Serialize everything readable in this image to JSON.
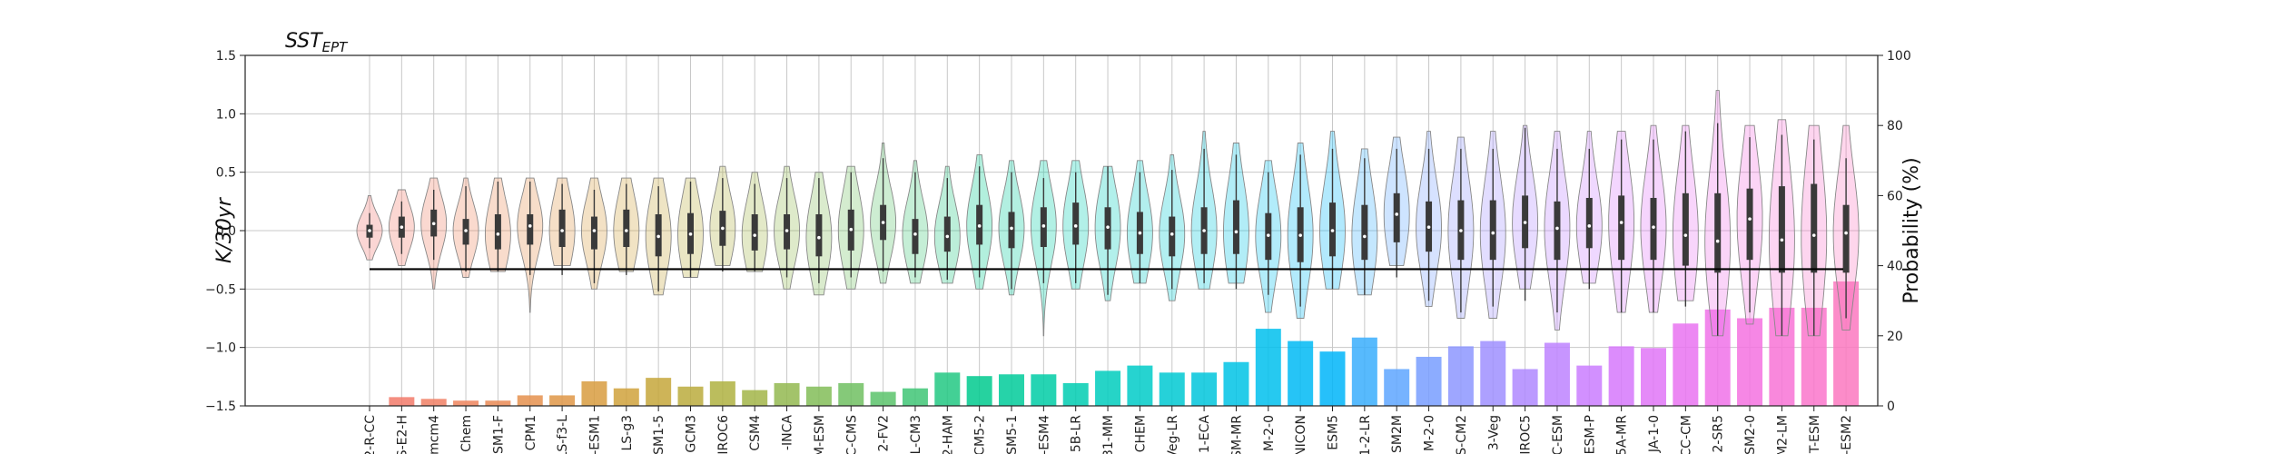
{
  "chart_data": {
    "type": "violin+bar",
    "title": "SST",
    "title_subscript": "EPT",
    "ylabel_left": "K/30yr",
    "ylabel_right": "Probability (%)",
    "ylim_left": [
      -1.5,
      1.5
    ],
    "yticks_left": [
      -1.5,
      -1.0,
      -0.5,
      0.0,
      0.5,
      1.0,
      1.5
    ],
    "ytick_labels_left": [
      "−1.5",
      "−1.0",
      "−0.5",
      "0.0",
      "0.5",
      "1.0",
      "1.5"
    ],
    "ylim_right": [
      0,
      100
    ],
    "yticks_right": [
      0,
      20,
      40,
      60,
      80,
      100
    ],
    "ytick_labels_right": [
      "0",
      "20",
      "40",
      "60",
      "80",
      "100"
    ],
    "reference_line_value": -0.33,
    "grid": true,
    "categories": [
      "2-R-CC",
      "S-E2-H",
      "mcm4",
      "Chem",
      "SM1-F",
      "CPM1",
      "LS-f3-L",
      "-ESM1",
      "LS-g3",
      "SM1-5",
      "GCM3",
      "IROC6",
      "CSM4",
      "-INCA",
      "M-ESM",
      "C-CMS",
      "2-FV2",
      "L-CM3",
      "2-HAM",
      "CM5-2",
      "ESM5-1",
      "-ESM4",
      "5B-LR",
      "31-MM",
      "CHEM",
      "Veg-LR",
      "1-ECA",
      "SM-MR",
      "M-2-0",
      "NICON",
      "ESM5",
      "1-2-LR",
      "SM2M",
      "M-2-0",
      "S-CM2",
      "3-Veg",
      "IROC5",
      "C-ESM",
      "ESM-P",
      "5A-MR",
      "JA-1-0",
      "CC-CM",
      "2-SR5",
      "SM2-0",
      "M2-LM",
      "T-ESM",
      "-ESM2"
    ],
    "probability_values": [
      0,
      2.5,
      2,
      1.5,
      1.5,
      3,
      3,
      7,
      5,
      8,
      5.5,
      7,
      4.5,
      6.5,
      5.5,
      6.5,
      4,
      5,
      9.5,
      8.5,
      9,
      9,
      6.5,
      10,
      11.5,
      9.5,
      9.5,
      12.5,
      22,
      18.5,
      15.5,
      19.5,
      10.5,
      14,
      17,
      18.5,
      10.5,
      18,
      11.5,
      17,
      16.5,
      23.5,
      27.5,
      25,
      28,
      28,
      35.5
    ],
    "violin_medians": [
      0.0,
      0.03,
      0.06,
      0.0,
      -0.03,
      0.04,
      0.0,
      0.0,
      0.0,
      -0.05,
      -0.03,
      0.02,
      -0.04,
      0.0,
      -0.06,
      0.01,
      0.07,
      -0.03,
      -0.05,
      0.04,
      0.02,
      0.04,
      0.04,
      0.03,
      -0.02,
      -0.03,
      0.0,
      -0.01,
      -0.04,
      -0.04,
      0.0,
      -0.05,
      0.14,
      0.03,
      0.0,
      -0.02,
      0.07,
      0.02,
      0.04,
      0.07,
      0.03,
      -0.04,
      -0.09,
      0.1,
      -0.08,
      -0.04,
      -0.02
    ],
    "violin_q1": [
      -0.06,
      -0.06,
      -0.05,
      -0.12,
      -0.16,
      -0.12,
      -0.14,
      -0.16,
      -0.14,
      -0.22,
      -0.2,
      -0.13,
      -0.17,
      -0.16,
      -0.22,
      -0.17,
      -0.08,
      -0.2,
      -0.18,
      -0.12,
      -0.15,
      -0.14,
      -0.12,
      -0.16,
      -0.2,
      -0.22,
      -0.2,
      -0.2,
      -0.25,
      -0.27,
      -0.22,
      -0.25,
      -0.1,
      -0.18,
      -0.25,
      -0.25,
      -0.15,
      -0.25,
      -0.15,
      -0.25,
      -0.25,
      -0.3,
      -0.36,
      -0.25,
      -0.36,
      -0.36,
      -0.36
    ],
    "violin_q3": [
      0.05,
      0.12,
      0.18,
      0.1,
      0.14,
      0.14,
      0.18,
      0.12,
      0.18,
      0.14,
      0.15,
      0.17,
      0.14,
      0.14,
      0.14,
      0.18,
      0.22,
      0.1,
      0.12,
      0.22,
      0.16,
      0.2,
      0.24,
      0.2,
      0.16,
      0.12,
      0.2,
      0.26,
      0.15,
      0.2,
      0.24,
      0.22,
      0.32,
      0.25,
      0.26,
      0.26,
      0.3,
      0.25,
      0.28,
      0.3,
      0.28,
      0.32,
      0.32,
      0.36,
      0.38,
      0.4,
      0.22
    ],
    "violin_min": [
      -0.25,
      -0.3,
      -0.5,
      -0.4,
      -0.35,
      -0.7,
      -0.3,
      -0.5,
      -0.35,
      -0.55,
      -0.4,
      -0.3,
      -0.35,
      -0.5,
      -0.55,
      -0.5,
      -0.45,
      -0.45,
      -0.45,
      -0.5,
      -0.55,
      -0.9,
      -0.5,
      -0.6,
      -0.45,
      -0.6,
      -0.5,
      -0.45,
      -0.7,
      -0.75,
      -0.5,
      -0.55,
      -0.3,
      -0.65,
      -0.75,
      -0.75,
      -0.5,
      -0.85,
      -0.45,
      -0.7,
      -0.7,
      -0.6,
      -0.9,
      -0.8,
      -0.9,
      -0.9,
      -0.85
    ],
    "violin_max": [
      0.3,
      0.35,
      0.45,
      0.45,
      0.45,
      0.45,
      0.45,
      0.45,
      0.45,
      0.45,
      0.45,
      0.55,
      0.5,
      0.55,
      0.5,
      0.55,
      0.75,
      0.6,
      0.55,
      0.65,
      0.6,
      0.6,
      0.6,
      0.55,
      0.6,
      0.65,
      0.85,
      0.75,
      0.6,
      0.75,
      0.85,
      0.7,
      0.8,
      0.85,
      0.8,
      0.85,
      0.9,
      0.85,
      0.85,
      0.85,
      0.9,
      0.9,
      1.2,
      0.9,
      0.95,
      0.9,
      0.9
    ],
    "violin_whisk_lo": [
      -0.15,
      -0.2,
      -0.25,
      -0.35,
      -0.35,
      -0.38,
      -0.38,
      -0.45,
      -0.38,
      -0.52,
      -0.4,
      -0.35,
      -0.35,
      -0.4,
      -0.45,
      -0.4,
      -0.35,
      -0.4,
      -0.42,
      -0.4,
      -0.5,
      -0.45,
      -0.45,
      -0.55,
      -0.45,
      -0.5,
      -0.45,
      -0.5,
      -0.55,
      -0.65,
      -0.5,
      -0.55,
      -0.4,
      -0.6,
      -0.7,
      -0.65,
      -0.6,
      -0.7,
      -0.5,
      -0.7,
      -0.7,
      -0.65,
      -0.9,
      -0.7,
      -0.9,
      -0.9,
      -0.75
    ],
    "violin_whisk_hi": [
      0.15,
      0.25,
      0.35,
      0.38,
      0.42,
      0.42,
      0.4,
      0.35,
      0.4,
      0.38,
      0.42,
      0.45,
      0.4,
      0.45,
      0.45,
      0.5,
      0.62,
      0.5,
      0.45,
      0.55,
      0.5,
      0.45,
      0.5,
      0.55,
      0.5,
      0.52,
      0.7,
      0.65,
      0.5,
      0.65,
      0.7,
      0.62,
      0.7,
      0.7,
      0.7,
      0.7,
      0.88,
      0.7,
      0.7,
      0.78,
      0.78,
      0.85,
      0.92,
      0.8,
      0.82,
      0.78,
      0.62
    ],
    "palette": [
      "#f27770",
      "#f27a6a",
      "#f07f64",
      "#ee845d",
      "#ea8a55",
      "#e5904d",
      "#df9646",
      "#d89c40",
      "#d0a23c",
      "#c6a73b",
      "#bbac3d",
      "#afb141",
      "#a2b548",
      "#93b950",
      "#83bd58",
      "#70c061",
      "#5ac36b",
      "#3fc676",
      "#22c882",
      "#00ca8e",
      "#00cb9a",
      "#00cca6",
      "#00ccb2",
      "#00ccbd",
      "#00cbc8",
      "#00c9d2",
      "#00c6dc",
      "#00c3e5",
      "#00bfed",
      "#00baf4",
      "#00b5f9",
      "#3aaefd",
      "#5ea6ff",
      "#789eff",
      "#8d96ff",
      "#9f8fff",
      "#af88ff",
      "#bd82ff",
      "#ca7dff",
      "#d678fc",
      "#e075f7",
      "#e973f1",
      "#f072e9",
      "#f572e0",
      "#f873d6",
      "#fa75cb",
      "#fb78c0"
    ]
  }
}
